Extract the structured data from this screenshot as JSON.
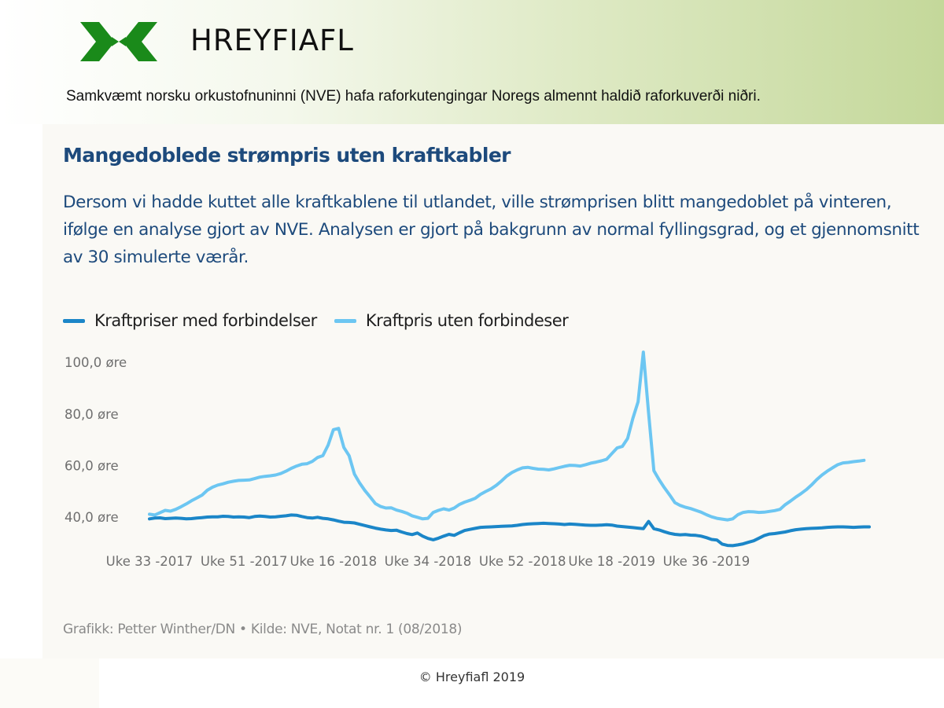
{
  "header": {
    "brand": "HREYFIAFL",
    "note": "Samkvæmt norsku orkustofnuninni (NVE) hafa raforkutengingar Noregs almennt haldið raforkuverði niðri.",
    "logo_icon": "x-chevron-logo",
    "logo_color": "#1a8a1a"
  },
  "chart_data": {
    "type": "line",
    "title": "Mangedoblede strømpris uten kraftkabler",
    "subtitle": "Dersom vi hadde kuttet alle kraftkablene til utlandet, ville strømprisen blitt mangedoblet på vinteren, ifølge en analyse gjort av NVE. Analysen er gjort på bakgrunn av normal fyllingsgrad, og et gjennomsnitt av 30 simulerte værår.",
    "xlabel": "",
    "ylabel": "",
    "y_ticks": [
      "40,0 øre",
      "60,0 øre",
      "80,0 øre",
      "100,0 øre"
    ],
    "y_tick_values": [
      40,
      60,
      80,
      100
    ],
    "x_tick_labels": [
      "Uke 33 -2017",
      "Uke 51 -2017",
      "Uke 16 -2018",
      "Uke 34 -2018",
      "Uke 52 -2018",
      "Uke 18 -2019",
      "Uke 36 -2019"
    ],
    "x_tick_index": [
      0,
      18,
      35,
      53,
      71,
      88,
      106
    ],
    "ylim": [
      29,
      105
    ],
    "grid": false,
    "legend_position": "top-left",
    "series": [
      {
        "name": "Kraftpriser med forbindelser",
        "color": "#1b86c8",
        "values": [
          39.3,
          39.6,
          39.7,
          39.4,
          39.5,
          39.6,
          39.5,
          39.3,
          39.4,
          39.6,
          39.8,
          40.0,
          40.1,
          40.1,
          40.3,
          40.2,
          40.0,
          40.1,
          40.0,
          39.8,
          40.2,
          40.4,
          40.2,
          40.0,
          40.1,
          40.3,
          40.5,
          40.8,
          40.7,
          40.2,
          39.8,
          39.6,
          39.9,
          39.5,
          39.3,
          38.9,
          38.4,
          38.0,
          37.9,
          37.7,
          37.2,
          36.7,
          36.2,
          35.7,
          35.3,
          35.0,
          34.8,
          34.9,
          34.2,
          33.6,
          33.2,
          33.8,
          32.6,
          31.7,
          31.2,
          31.8,
          32.6,
          33.3,
          32.9,
          33.9,
          34.8,
          35.2,
          35.6,
          36.0,
          36.1,
          36.2,
          36.3,
          36.4,
          36.5,
          36.6,
          36.8,
          37.1,
          37.3,
          37.4,
          37.5,
          37.6,
          37.5,
          37.4,
          37.3,
          37.1,
          37.3,
          37.2,
          37.0,
          36.9,
          36.8,
          36.8,
          36.9,
          37.0,
          36.9,
          36.5,
          36.3,
          36.1,
          35.9,
          35.7,
          35.5,
          38.3,
          35.5,
          35.0,
          34.3,
          33.7,
          33.3,
          33.1,
          33.2,
          33.0,
          32.9,
          32.6,
          32.0,
          31.3,
          31.1,
          29.5,
          29.0,
          28.9,
          29.2,
          29.6,
          30.2,
          30.8,
          31.8,
          32.8,
          33.4,
          33.6,
          33.9,
          34.2,
          34.7,
          35.1,
          35.3,
          35.5,
          35.6,
          35.7,
          35.8,
          36.0,
          36.1,
          36.2,
          36.2,
          36.1,
          36.0,
          36.1,
          36.2,
          36.2
        ]
      },
      {
        "name": "Kraftpris uten forbindeser",
        "color": "#6cc6f2",
        "values": [
          41.1,
          40.8,
          41.7,
          42.6,
          42.3,
          43.0,
          44.0,
          45.1,
          46.3,
          47.4,
          48.5,
          50.4,
          51.6,
          52.4,
          52.9,
          53.5,
          53.9,
          54.2,
          54.3,
          54.4,
          54.9,
          55.5,
          55.8,
          56.0,
          56.3,
          56.9,
          57.8,
          58.9,
          59.8,
          60.5,
          60.7,
          61.6,
          63.1,
          63.8,
          67.9,
          73.9,
          74.4,
          67.0,
          63.8,
          56.7,
          53.2,
          50.3,
          47.8,
          45.2,
          44.1,
          43.5,
          43.6,
          42.7,
          42.2,
          41.5,
          40.5,
          39.9,
          39.3,
          39.5,
          41.8,
          42.6,
          43.2,
          42.7,
          43.5,
          44.9,
          45.8,
          46.5,
          47.3,
          48.8,
          49.9,
          50.9,
          52.3,
          54.0,
          55.9,
          57.3,
          58.3,
          59.1,
          59.3,
          58.9,
          58.6,
          58.5,
          58.3,
          58.7,
          59.2,
          59.7,
          60.1,
          60.0,
          59.8,
          60.3,
          60.9,
          61.3,
          61.8,
          62.4,
          64.6,
          66.8,
          67.4,
          70.5,
          78.3,
          84.7,
          104.0,
          80.3,
          58.0,
          54.5,
          51.4,
          48.6,
          45.6,
          44.5,
          43.8,
          43.3,
          42.6,
          41.9,
          40.9,
          40.1,
          39.5,
          39.2,
          38.9,
          39.3,
          40.9,
          41.8,
          42.1,
          42.0,
          41.8,
          41.9,
          42.2,
          42.5,
          43.0,
          44.8,
          46.2,
          47.7,
          49.1,
          50.6,
          52.4,
          54.5,
          56.3,
          57.8,
          59.1,
          60.3,
          61.0,
          61.2,
          61.5,
          61.7,
          62.0
        ]
      }
    ]
  },
  "source": "Grafikk: Petter Winther/DN • Kilde: NVE, Notat nr. 1 (08/2018)",
  "footer": {
    "copyright": "© Hreyfiafl 2019"
  }
}
